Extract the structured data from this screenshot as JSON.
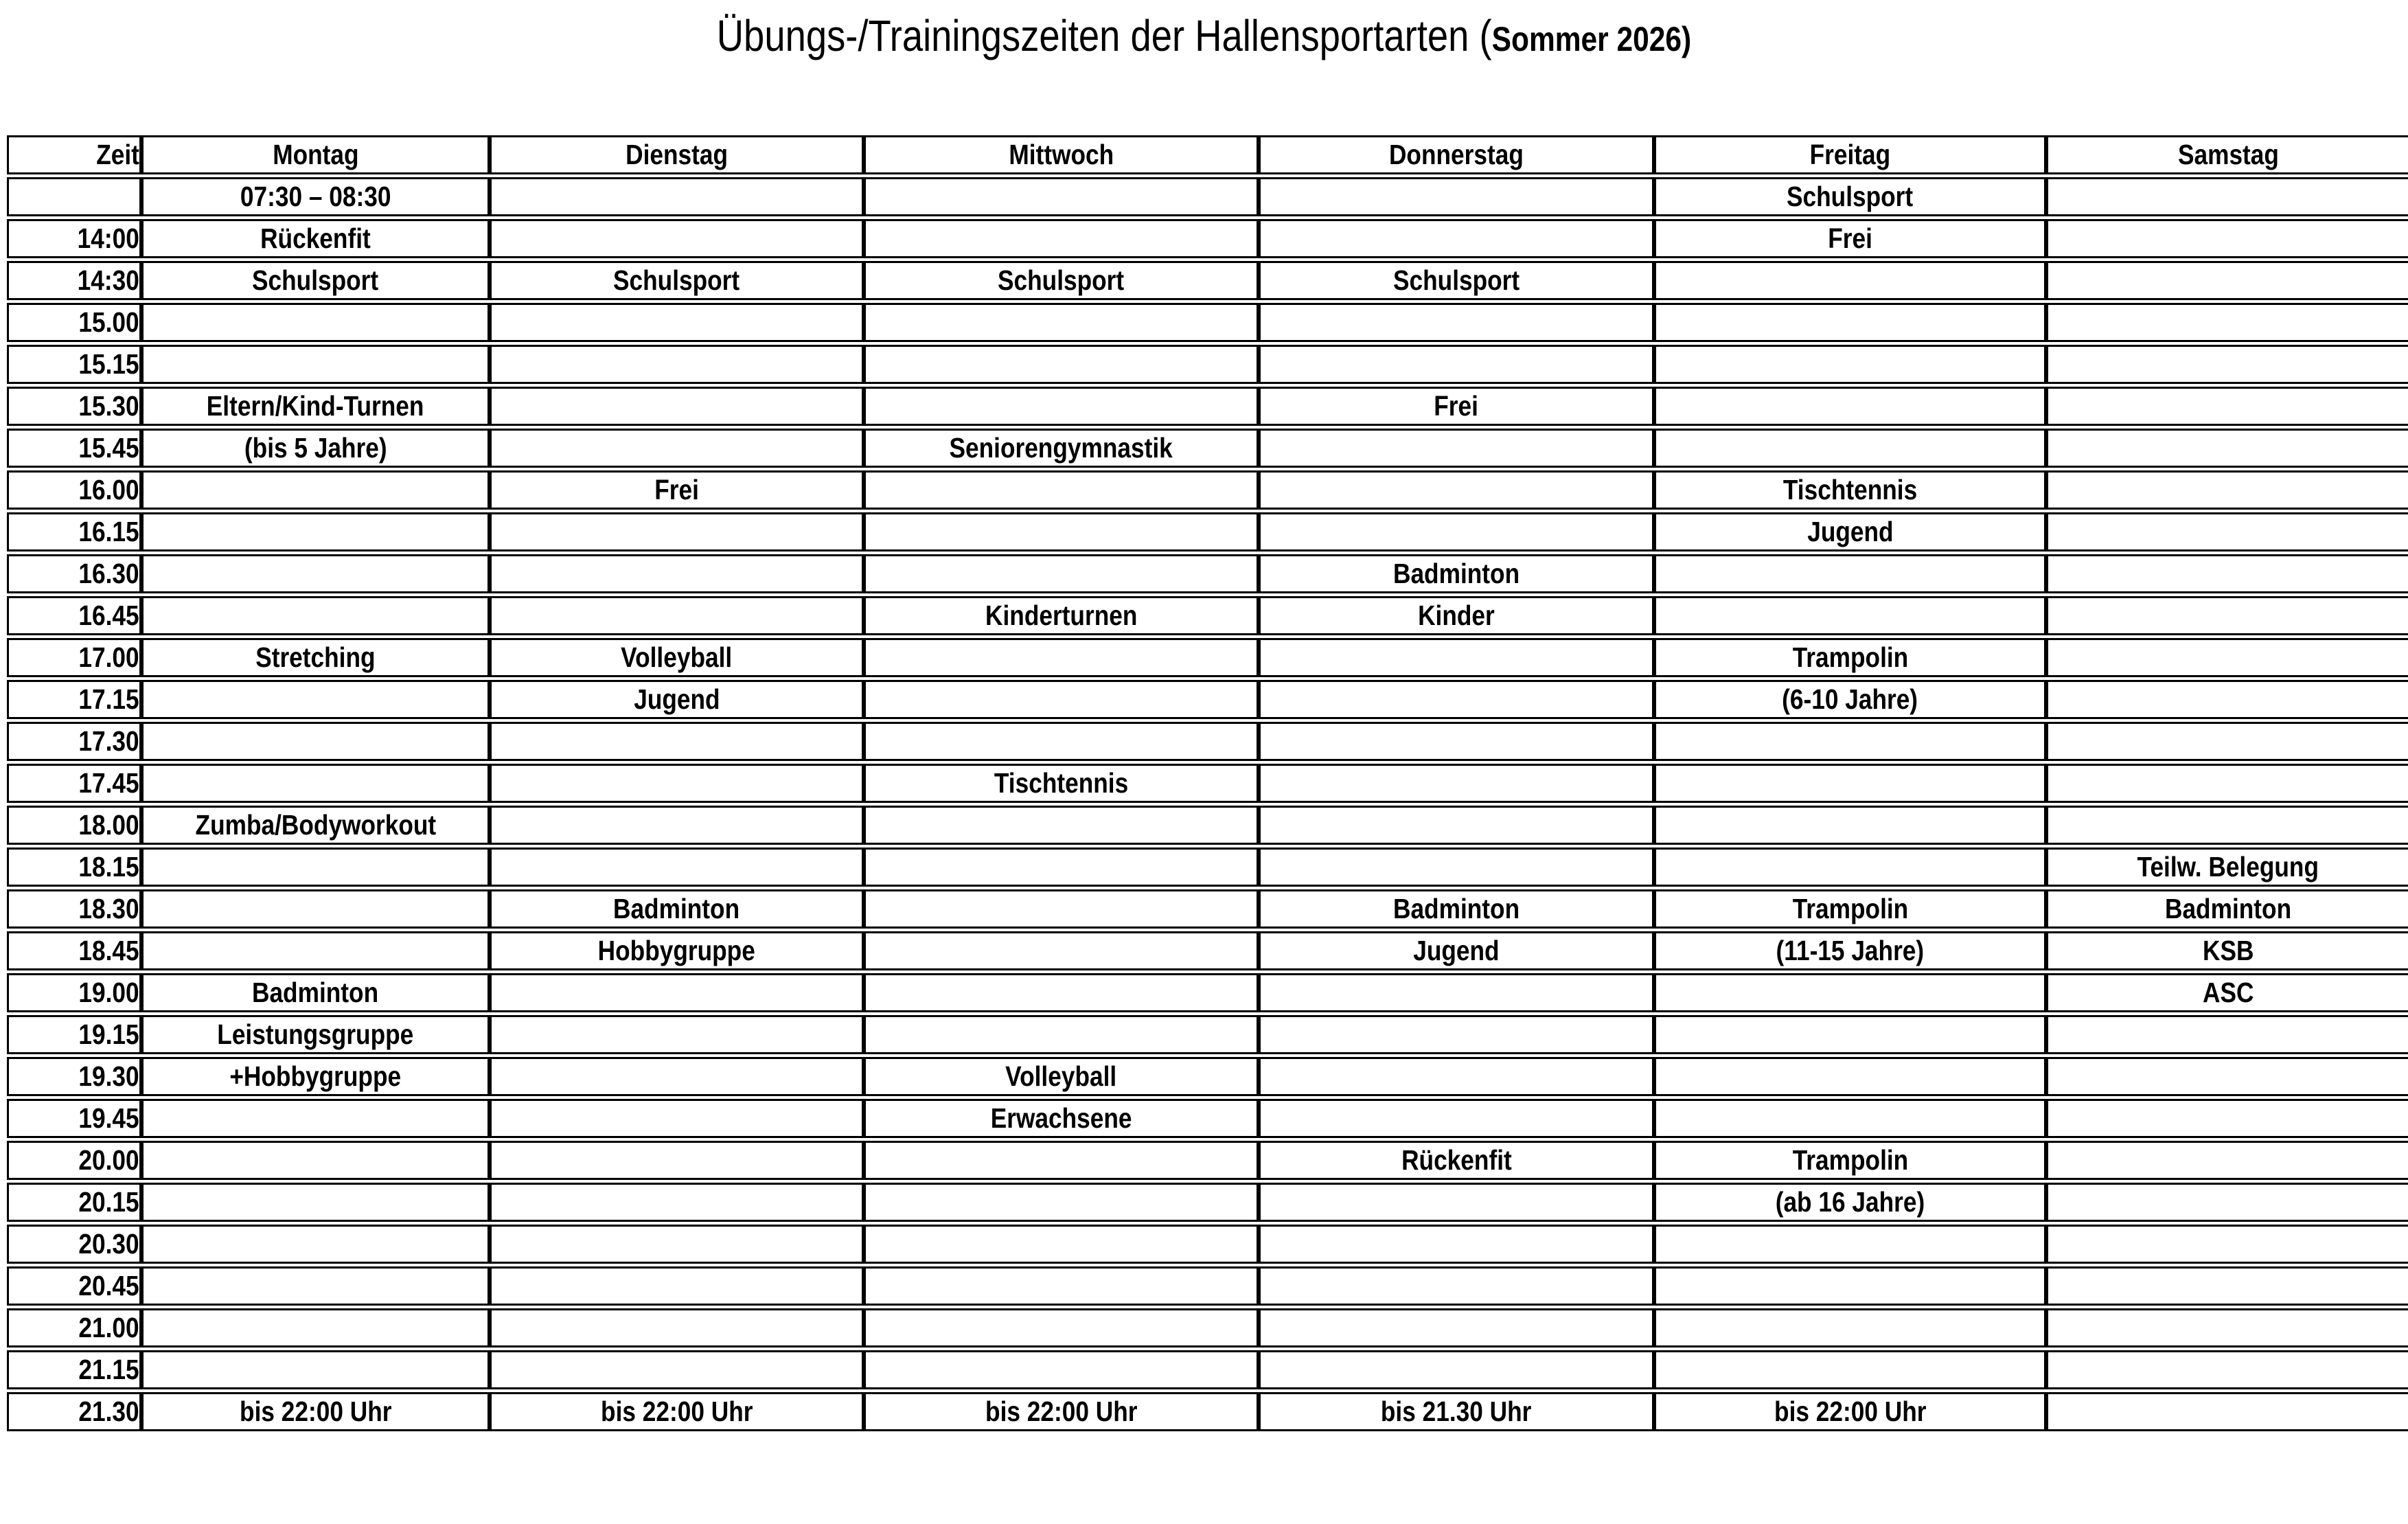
{
  "title": {
    "main": "Übungs-/Trainingszeiten der Hallensportarten (",
    "season": "Sommer 2026)"
  },
  "colors": {
    "text": "#000000",
    "background": "#ffffff"
  },
  "table": {
    "columns": [
      "Zeit",
      "Montag",
      "Dienstag",
      "Mittwoch",
      "Donnerstag",
      "Freitag",
      "Samstag"
    ],
    "rows": [
      {
        "time": "",
        "cells": [
          "07:30 – 08:30",
          "",
          "",
          "",
          "Schulsport",
          ""
        ]
      },
      {
        "time": "14:00",
        "cells": [
          "Rückenfit",
          "",
          "",
          "",
          "Frei",
          ""
        ]
      },
      {
        "time": "14:30",
        "cells": [
          "Schulsport",
          "Schulsport",
          "Schulsport",
          "Schulsport",
          "",
          ""
        ]
      },
      {
        "time": "15.00",
        "cells": [
          "",
          "",
          "",
          "",
          "",
          ""
        ]
      },
      {
        "time": "15.15",
        "cells": [
          "",
          "",
          "",
          "",
          "",
          ""
        ]
      },
      {
        "time": "15.30",
        "cells": [
          "Eltern/Kind-Turnen",
          "",
          "",
          "Frei",
          "",
          ""
        ]
      },
      {
        "time": "15.45",
        "cells": [
          "(bis 5 Jahre)",
          "",
          "Seniorengymnastik",
          "",
          "",
          ""
        ]
      },
      {
        "time": "16.00",
        "cells": [
          "",
          "Frei",
          "",
          "",
          "Tischtennis",
          ""
        ]
      },
      {
        "time": "16.15",
        "cells": [
          "",
          "",
          "",
          "",
          "Jugend",
          ""
        ]
      },
      {
        "time": "16.30",
        "cells": [
          "",
          "",
          "",
          "Badminton",
          "",
          ""
        ]
      },
      {
        "time": "16.45",
        "cells": [
          "",
          "",
          "Kinderturnen",
          "Kinder",
          "",
          ""
        ]
      },
      {
        "time": "17.00",
        "cells": [
          "Stretching",
          "Volleyball",
          "",
          "",
          "Trampolin",
          ""
        ]
      },
      {
        "time": "17.15",
        "cells": [
          "",
          "Jugend",
          "",
          "",
          "(6-10 Jahre)",
          ""
        ]
      },
      {
        "time": "17.30",
        "cells": [
          "",
          "",
          "",
          "",
          "",
          ""
        ]
      },
      {
        "time": "17.45",
        "cells": [
          "",
          "",
          "Tischtennis",
          "",
          "",
          ""
        ]
      },
      {
        "time": "18.00",
        "cells": [
          "Zumba/Bodyworkout",
          "",
          "",
          "",
          "",
          ""
        ]
      },
      {
        "time": "18.15",
        "cells": [
          "",
          "",
          "",
          "",
          "",
          "Teilw. Belegung"
        ]
      },
      {
        "time": "18.30",
        "cells": [
          "",
          "Badminton",
          "",
          "Badminton",
          "Trampolin",
          "Badminton"
        ]
      },
      {
        "time": "18.45",
        "cells": [
          "",
          "Hobbygruppe",
          "",
          "Jugend",
          "(11-15 Jahre)",
          "KSB"
        ]
      },
      {
        "time": "19.00",
        "cells": [
          "Badminton",
          "",
          "",
          "",
          "",
          "ASC"
        ]
      },
      {
        "time": "19.15",
        "cells": [
          "Leistungsgruppe",
          "",
          "",
          "",
          "",
          ""
        ]
      },
      {
        "time": "19.30",
        "cells": [
          "+Hobbygruppe",
          "",
          "Volleyball",
          "",
          "",
          ""
        ]
      },
      {
        "time": "19.45",
        "cells": [
          "",
          "",
          "Erwachsene",
          "",
          "",
          ""
        ]
      },
      {
        "time": "20.00",
        "cells": [
          "",
          "",
          "",
          "Rückenfit",
          "Trampolin",
          ""
        ]
      },
      {
        "time": "20.15",
        "cells": [
          "",
          "",
          "",
          "",
          "(ab 16 Jahre)",
          ""
        ]
      },
      {
        "time": "20.30",
        "cells": [
          "",
          "",
          "",
          "",
          "",
          ""
        ]
      },
      {
        "time": "20.45",
        "cells": [
          "",
          "",
          "",
          "",
          "",
          ""
        ]
      },
      {
        "time": "21.00",
        "cells": [
          "",
          "",
          "",
          "",
          "",
          ""
        ]
      },
      {
        "time": "21.15",
        "cells": [
          "",
          "",
          "",
          "",
          "",
          ""
        ]
      },
      {
        "time": "21.30",
        "cells": [
          "bis 22:00 Uhr",
          "bis 22:00 Uhr",
          "bis 22:00 Uhr",
          "bis 21.30 Uhr",
          "bis 22:00 Uhr",
          ""
        ]
      }
    ]
  }
}
